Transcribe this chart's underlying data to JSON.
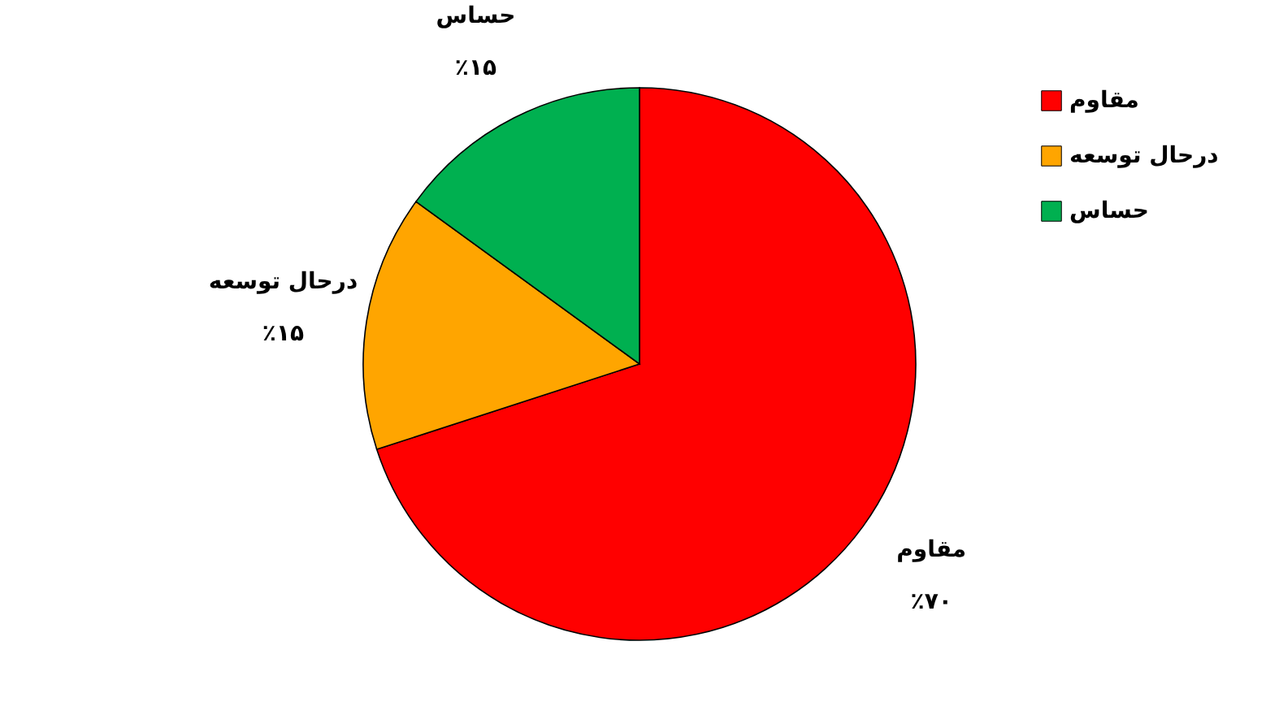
{
  "chart_data": {
    "type": "pie",
    "categories": [
      "مقاوم",
      "درحال توسعه",
      "حساس"
    ],
    "values": [
      70,
      15,
      15
    ],
    "colors": [
      "#ff0000",
      "#ffa500",
      "#00b050"
    ],
    "value_labels": [
      "٪۷۰",
      "٪۱۵",
      "٪۱۵"
    ],
    "legend": "top right"
  }
}
